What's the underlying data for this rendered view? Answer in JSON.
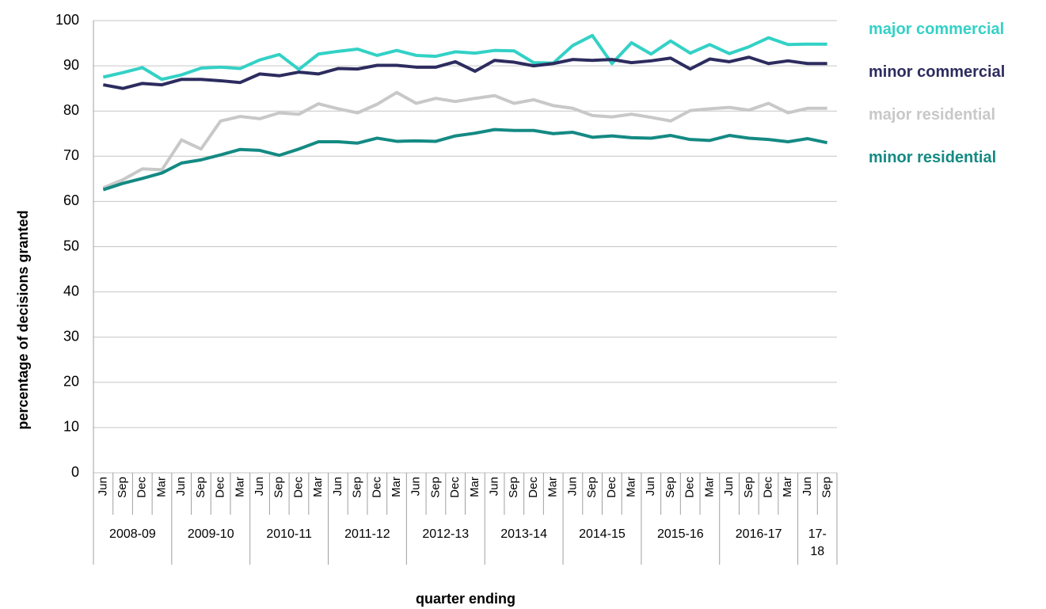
{
  "chart_data": {
    "type": "line",
    "y_label": "percentage of decisions granted",
    "x_label": "quarter ending",
    "categories": [
      "Jun",
      "Sep",
      "Dec",
      "Mar",
      "Jun",
      "Sep",
      "Dec",
      "Mar",
      "Jun",
      "Sep",
      "Dec",
      "Mar",
      "Jun",
      "Sep",
      "Dec",
      "Mar",
      "Jun",
      "Sep",
      "Dec",
      "Mar",
      "Jun",
      "Sep",
      "Dec",
      "Mar",
      "Jun",
      "Sep",
      "Dec",
      "Mar",
      "Jun",
      "Sep",
      "Dec",
      "Mar",
      "Jun",
      "Sep",
      "Dec",
      "Mar",
      "Jun",
      "Sep"
    ],
    "x_groups": [
      "2008-09",
      "2009-10",
      "2010-11",
      "2011-12",
      "2012-13",
      "2013-14",
      "2014-15",
      "2015-16",
      "2016-17",
      "17-18"
    ],
    "ylim": [
      0,
      100
    ],
    "yticks": [
      0,
      10,
      20,
      30,
      40,
      50,
      60,
      70,
      80,
      90,
      100
    ],
    "grid": true,
    "series": [
      {
        "name": "major commercial",
        "color": "#33d1c6",
        "values": [
          87.5,
          88.5,
          89.6,
          87.0,
          88.0,
          89.5,
          89.7,
          89.4,
          91.3,
          92.5,
          89.2,
          92.6,
          93.2,
          93.7,
          92.3,
          93.4,
          92.3,
          92.1,
          93.1,
          92.8,
          93.4,
          93.3,
          90.7,
          90.6,
          94.5,
          96.7,
          90.5,
          95.1,
          92.6,
          95.5,
          92.8,
          94.7,
          92.7,
          94.2,
          96.2,
          94.7,
          94.8,
          94.8
        ]
      },
      {
        "name": "minor commercial",
        "color": "#2d2c5f",
        "values": [
          85.8,
          85.0,
          86.1,
          85.8,
          87.0,
          87.0,
          86.7,
          86.3,
          88.2,
          87.8,
          88.6,
          88.2,
          89.4,
          89.3,
          90.1,
          90.1,
          89.7,
          89.7,
          90.9,
          88.8,
          91.2,
          90.8,
          90.0,
          90.5,
          91.4,
          91.2,
          91.4,
          90.7,
          91.1,
          91.7,
          89.3,
          91.5,
          90.9,
          91.9,
          90.5,
          91.1,
          90.5,
          90.5
        ]
      },
      {
        "name": "major residential",
        "color": "#c8c8c8",
        "values": [
          63.0,
          64.8,
          67.2,
          67.0,
          73.6,
          71.6,
          77.8,
          78.8,
          78.3,
          79.6,
          79.3,
          81.6,
          80.5,
          79.6,
          81.5,
          84.1,
          81.7,
          82.8,
          82.1,
          82.8,
          83.4,
          81.7,
          82.5,
          81.2,
          80.6,
          79.0,
          78.7,
          79.3,
          78.6,
          77.8,
          80.1,
          80.5,
          80.8,
          80.2,
          81.7,
          79.6,
          80.6,
          80.6
        ]
      },
      {
        "name": "minor residential",
        "color": "#148a83",
        "values": [
          62.6,
          64.0,
          65.1,
          66.3,
          68.5,
          69.2,
          70.3,
          71.5,
          71.3,
          70.2,
          71.6,
          73.2,
          73.2,
          72.9,
          74.0,
          73.3,
          73.4,
          73.3,
          74.5,
          75.1,
          75.9,
          75.7,
          75.7,
          75.0,
          75.3,
          74.2,
          74.5,
          74.1,
          74.0,
          74.6,
          73.7,
          73.5,
          74.6,
          74.0,
          73.7,
          73.2,
          73.9,
          73.0
        ]
      }
    ]
  }
}
